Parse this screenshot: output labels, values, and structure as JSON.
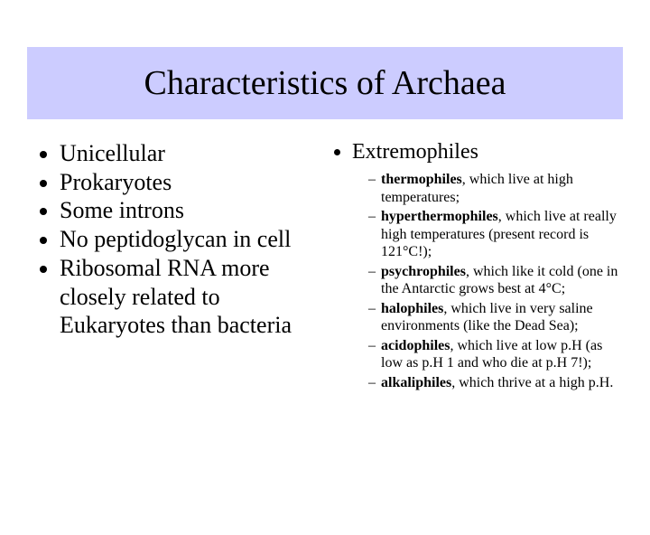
{
  "title": "Characteristics of Archaea",
  "left_bullets": [
    "Unicellular",
    "Prokaryotes",
    "Some introns",
    "No peptidoglycan in cell",
    "Ribosomal RNA more closely related to Eukaryotes than bacteria"
  ],
  "right_heading": "Extremophiles",
  "sub_items": [
    {
      "term": "thermophiles",
      "rest": ", which live at high temperatures;"
    },
    {
      "term": "hyperthermophiles",
      "rest": ", which live at really high temperatures (present record is 121°C!);"
    },
    {
      "term": "psychrophiles",
      "rest": ", which like it cold (one in the Antarctic grows best at 4°C;"
    },
    {
      "term": "halophiles",
      "rest": ", which live in very saline environments (like the Dead Sea);"
    },
    {
      "term": "acidophiles",
      "rest": ", which live at low p.H (as low as p.H 1 and who die at p.H 7!);"
    },
    {
      "term": "alkaliphiles",
      "rest": ", which thrive at a high p.H."
    }
  ],
  "colors": {
    "title_band": "#ccccff",
    "background": "#ffffff",
    "text": "#000000"
  },
  "fonts": {
    "title_size_pt": 38,
    "left_body_size_pt": 26,
    "right_heading_size_pt": 24,
    "sub_size_pt": 16,
    "family": "Times New Roman"
  }
}
